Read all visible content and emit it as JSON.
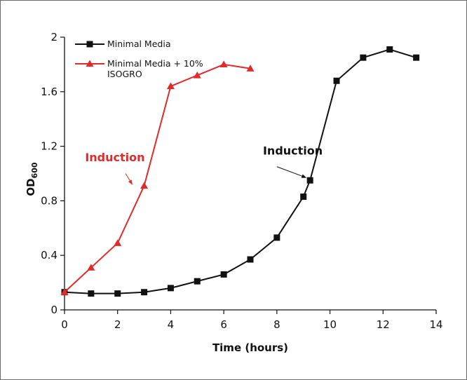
{
  "chart_data": {
    "type": "line",
    "xlabel": "Time (hours)",
    "ylabel_main": "OD",
    "ylabel_sub": "600",
    "xlim": [
      0,
      14
    ],
    "ylim": [
      0,
      2
    ],
    "x_ticks": [
      0,
      2,
      4,
      6,
      8,
      10,
      12,
      14
    ],
    "x_tick_labels": [
      "0",
      "2",
      "4",
      "6",
      "8",
      "10",
      "12",
      "14"
    ],
    "y_ticks": [
      0,
      0.4,
      0.8,
      1.2,
      1.6,
      2
    ],
    "y_tick_labels": [
      "0",
      "0.4",
      "0.8",
      "1.2",
      "1.6",
      "2"
    ],
    "grid": false,
    "legend_position": "top-left",
    "series": [
      {
        "name": "Minimal Media",
        "color": "#111111",
        "marker": "square",
        "points": [
          [
            0,
            0.13
          ],
          [
            1,
            0.12
          ],
          [
            2,
            0.12
          ],
          [
            3,
            0.13
          ],
          [
            4,
            0.16
          ],
          [
            5,
            0.21
          ],
          [
            6,
            0.26
          ],
          [
            7,
            0.37
          ],
          [
            8,
            0.53
          ],
          [
            9,
            0.83
          ],
          [
            9.25,
            0.95
          ],
          [
            10.25,
            1.68
          ],
          [
            11.25,
            1.85
          ],
          [
            12.25,
            1.91
          ],
          [
            13.25,
            1.85
          ]
        ]
      },
      {
        "name": "Minimal Media + 10% ISOGRO",
        "legend_lines": [
          "Minimal Media + 10%",
          "ISOGRO"
        ],
        "color": "#e02b2b",
        "marker": "triangle",
        "points": [
          [
            0,
            0.13
          ],
          [
            1,
            0.31
          ],
          [
            2,
            0.49
          ],
          [
            3,
            0.91
          ],
          [
            4,
            1.64
          ],
          [
            5,
            1.72
          ],
          [
            6,
            1.8
          ],
          [
            7,
            1.77
          ]
        ]
      }
    ],
    "annotations": [
      {
        "text": "Induction",
        "color": "#e02b2b",
        "text_at": [
          1.9,
          1.09
        ],
        "arrow_from": [
          2.3,
          1.0
        ],
        "arrow_to": [
          2.55,
          0.92
        ]
      },
      {
        "text": "Induction",
        "color": "#111111",
        "text_at": [
          8.6,
          1.14
        ],
        "arrow_from": [
          8.0,
          1.05
        ],
        "arrow_to": [
          9.1,
          0.97
        ]
      }
    ]
  }
}
